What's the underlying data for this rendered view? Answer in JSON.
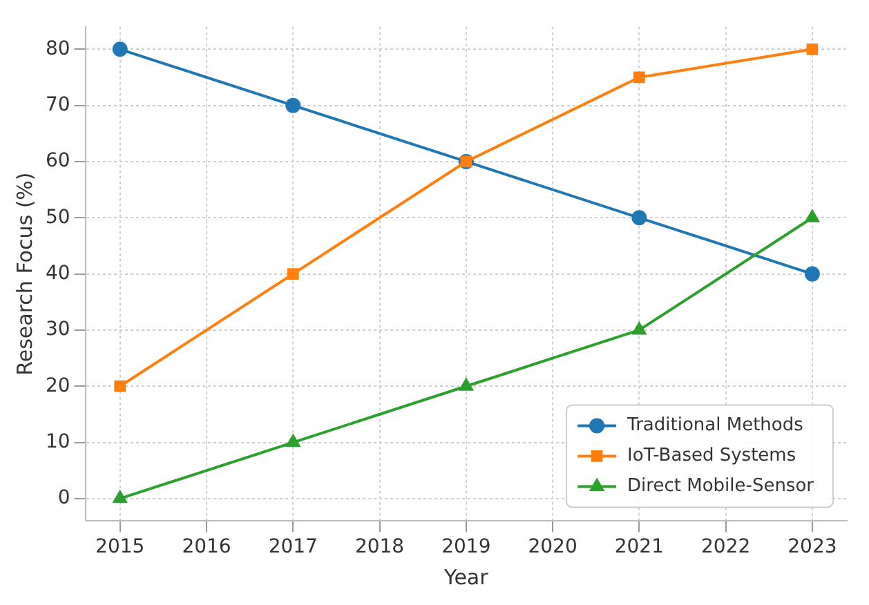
{
  "chart_data": {
    "type": "line",
    "xlabel": "Year",
    "ylabel": "Research Focus (%)",
    "x": [
      2015,
      2017,
      2019,
      2021,
      2023
    ],
    "series": [
      {
        "name": "Traditional Methods",
        "color": "#1f77b4",
        "marker": "circle",
        "values": [
          80,
          70,
          60,
          50,
          40
        ]
      },
      {
        "name": "IoT-Based Systems",
        "color": "#ff7f0e",
        "marker": "square",
        "values": [
          20,
          40,
          60,
          75,
          80
        ]
      },
      {
        "name": "Direct Mobile-Sensor",
        "color": "#2ca02c",
        "marker": "triangle",
        "values": [
          0,
          10,
          20,
          30,
          50
        ]
      }
    ],
    "xlim": [
      2014.6,
      2023.4
    ],
    "xticks": [
      2015,
      2016,
      2017,
      2018,
      2019,
      2020,
      2021,
      2022,
      2023
    ],
    "ylim": [
      -4,
      84
    ],
    "yticks": [
      0,
      10,
      20,
      30,
      40,
      50,
      60,
      70,
      80
    ],
    "grid": true,
    "legend": "bottom right",
    "line_style": "solid"
  }
}
